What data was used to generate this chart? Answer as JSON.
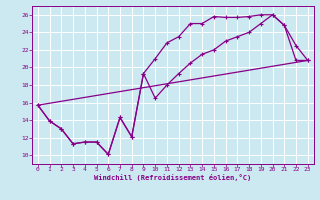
{
  "xlabel": "Windchill (Refroidissement éolien,°C)",
  "bg_color": "#cce8f0",
  "grid_color": "#ffffff",
  "line_color": "#880088",
  "xlim": [
    -0.5,
    23.5
  ],
  "ylim": [
    9.0,
    27.0
  ],
  "xticks": [
    0,
    1,
    2,
    3,
    4,
    5,
    6,
    7,
    8,
    9,
    10,
    11,
    12,
    13,
    14,
    15,
    16,
    17,
    18,
    19,
    20,
    21,
    22,
    23
  ],
  "yticks": [
    10,
    12,
    14,
    16,
    18,
    20,
    22,
    24,
    26
  ],
  "series1_x": [
    0,
    1,
    2,
    3,
    4,
    5,
    6,
    7,
    8,
    9,
    10,
    11,
    12,
    13,
    14,
    15,
    16,
    17,
    18,
    19,
    20,
    21,
    22,
    23
  ],
  "series1_y": [
    15.7,
    13.9,
    13.0,
    11.3,
    11.5,
    11.5,
    10.1,
    14.3,
    12.1,
    19.3,
    21.0,
    22.8,
    23.5,
    25.0,
    25.0,
    25.8,
    25.7,
    25.7,
    25.8,
    26.0,
    26.0,
    24.8,
    22.5,
    20.8
  ],
  "series2_x": [
    0,
    1,
    2,
    3,
    4,
    5,
    6,
    7,
    8,
    9,
    10,
    11,
    12,
    13,
    14,
    15,
    16,
    17,
    18,
    19,
    20,
    21,
    22,
    23
  ],
  "series2_y": [
    15.7,
    13.9,
    13.0,
    11.3,
    11.5,
    11.5,
    10.1,
    14.3,
    12.1,
    19.3,
    16.5,
    18.0,
    19.3,
    20.5,
    21.5,
    22.0,
    23.0,
    23.5,
    24.0,
    25.0,
    26.0,
    24.8,
    20.8,
    20.8
  ],
  "series3_x": [
    0,
    23
  ],
  "series3_y": [
    15.7,
    20.8
  ]
}
